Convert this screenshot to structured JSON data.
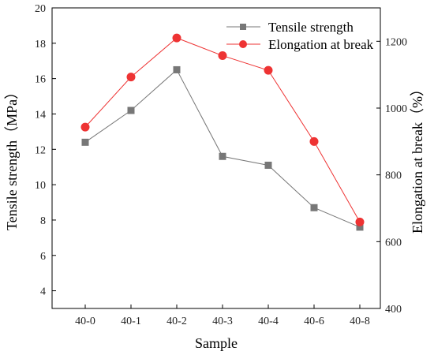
{
  "chart_data": {
    "type": "line",
    "xlabel": "Sample",
    "categories": [
      "40-0",
      "40-1",
      "40-2",
      "40-3",
      "40-4",
      "40-6",
      "40-8"
    ],
    "y_left": {
      "label": "Tensile strength（MPa）",
      "lim": [
        3,
        20
      ],
      "ticks": [
        4,
        6,
        8,
        10,
        12,
        14,
        16,
        18,
        20
      ]
    },
    "y_right": {
      "label": "Elongation at break（%）",
      "lim": [
        400,
        1300
      ],
      "ticks": [
        400,
        600,
        800,
        1000,
        1200
      ]
    },
    "series": [
      {
        "name": "Tensile strength",
        "axis": "left",
        "marker": "square",
        "color": "#777777",
        "values": [
          12.4,
          14.2,
          16.5,
          11.6,
          11.1,
          8.7,
          7.6
        ]
      },
      {
        "name": "Elongation at break",
        "axis": "right",
        "marker": "circle",
        "color": "#ee3333",
        "values": [
          943,
          1093,
          1210,
          1157,
          1113,
          900,
          659
        ]
      }
    ],
    "legend": "top-right",
    "grid": false
  }
}
